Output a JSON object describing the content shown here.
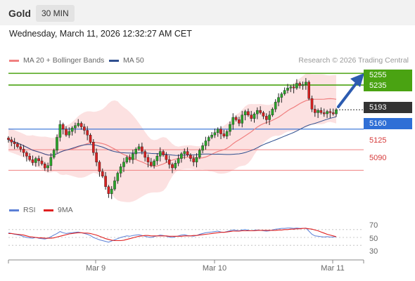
{
  "header": {
    "symbol": "Gold",
    "timeframe": "30 MIN"
  },
  "datetime": "Wednesday, March 11, 2026 12:32:27 AM CET",
  "legend": {
    "ma20_bb": {
      "label": "MA 20 + Bollinger Bands",
      "color": "#f08080"
    },
    "ma50": {
      "label": "MA 50",
      "color": "#2f4f8f"
    }
  },
  "copyright": "Research © 2026 Trading Central",
  "levels": {
    "r2": {
      "value": "5255",
      "color": "#4aa312"
    },
    "r1": {
      "value": "5235",
      "color": "#4aa312"
    },
    "current": {
      "value": "5193",
      "color": "#333333"
    },
    "pivot": {
      "value": "5160",
      "color": "#2f6fd6"
    },
    "s1": {
      "value": "5125",
      "color": "#e06060"
    },
    "s2": {
      "value": "5090",
      "color": "#e06060"
    }
  },
  "rsi": {
    "legend_rsi": {
      "label": "RSI",
      "color": "#5b7fd6"
    },
    "legend_9ma": {
      "label": "9MA",
      "color": "#e02020"
    },
    "ticks": [
      "70",
      "50",
      "30"
    ]
  },
  "x_axis": {
    "labels": [
      "Mar 9",
      "Mar 10",
      "Mar 11"
    ]
  },
  "chart_data": {
    "type": "candlestick",
    "y_range": [
      5045,
      5265
    ],
    "closes": [
      5142,
      5138,
      5135,
      5130,
      5126,
      5120,
      5114,
      5108,
      5103,
      5110,
      5106,
      5101,
      5094,
      5098,
      5112,
      5124,
      5146,
      5168,
      5160,
      5150,
      5156,
      5162,
      5166,
      5170,
      5164,
      5158,
      5150,
      5138,
      5120,
      5104,
      5088,
      5080,
      5062,
      5050,
      5058,
      5072,
      5085,
      5096,
      5104,
      5112,
      5108,
      5118,
      5126,
      5130,
      5122,
      5112,
      5104,
      5098,
      5106,
      5114,
      5122,
      5116,
      5108,
      5100,
      5094,
      5102,
      5110,
      5118,
      5122,
      5116,
      5110,
      5104,
      5112,
      5124,
      5132,
      5140,
      5146,
      5150,
      5154,
      5160,
      5152,
      5148,
      5156,
      5168,
      5180,
      5176,
      5170,
      5184,
      5190,
      5184,
      5178,
      5186,
      5192,
      5188,
      5182,
      5176,
      5184,
      5194,
      5206,
      5214,
      5220,
      5226,
      5230,
      5232,
      5230,
      5238,
      5234,
      5236,
      5240,
      5212,
      5194,
      5188,
      5192,
      5188,
      5186,
      5190,
      5188,
      5186,
      5193
    ],
    "rsi_values": [
      62,
      60,
      58,
      57,
      55,
      52,
      50,
      49,
      48,
      50,
      48,
      47,
      46,
      48,
      52,
      56,
      60,
      65,
      62,
      60,
      61,
      62,
      63,
      64,
      62,
      60,
      58,
      55,
      50,
      47,
      44,
      42,
      40,
      38,
      41,
      44,
      47,
      50,
      52,
      54,
      53,
      55,
      56,
      57,
      55,
      53,
      51,
      50,
      52,
      54,
      56,
      55,
      53,
      51,
      50,
      52,
      54,
      56,
      57,
      55,
      54,
      53,
      55,
      58,
      60,
      62,
      63,
      64,
      65,
      66,
      64,
      63,
      65,
      67,
      69,
      68,
      67,
      69,
      70,
      68,
      67,
      68,
      69,
      68,
      67,
      66,
      67,
      69,
      71,
      72,
      73,
      73,
      74,
      74,
      73,
      74,
      73,
      73,
      74,
      66,
      58,
      54,
      53,
      52,
      51,
      52,
      51,
      51,
      52
    ],
    "rsi_9ma_values": [
      60,
      60,
      59,
      58,
      57,
      56,
      54,
      52,
      51,
      50,
      49,
      49,
      48,
      48,
      48,
      49,
      51,
      53,
      55,
      57,
      59,
      60,
      61,
      62,
      62,
      61,
      61,
      60,
      58,
      56,
      53,
      50,
      47,
      45,
      43,
      42,
      42,
      42,
      43,
      45,
      47,
      49,
      51,
      53,
      54,
      55,
      55,
      54,
      54,
      54,
      54,
      54,
      54,
      53,
      53,
      53,
      53,
      53,
      54,
      54,
      54,
      55,
      55,
      56,
      57,
      58,
      59,
      60,
      61,
      62,
      63,
      63,
      64,
      65,
      66,
      66,
      66,
      67,
      67,
      67,
      67,
      67,
      68,
      68,
      68,
      68,
      68,
      68,
      68,
      69,
      69,
      70,
      70,
      71,
      71,
      72,
      72,
      73,
      73,
      72,
      71,
      69,
      67,
      64,
      61,
      58,
      56,
      54,
      52
    ],
    "rsi_range": [
      0,
      100
    ],
    "x_labels": [
      "Mar 9",
      "Mar 10",
      "Mar 11"
    ],
    "levels": [
      5255,
      5235,
      5193,
      5160,
      5125,
      5090
    ]
  }
}
